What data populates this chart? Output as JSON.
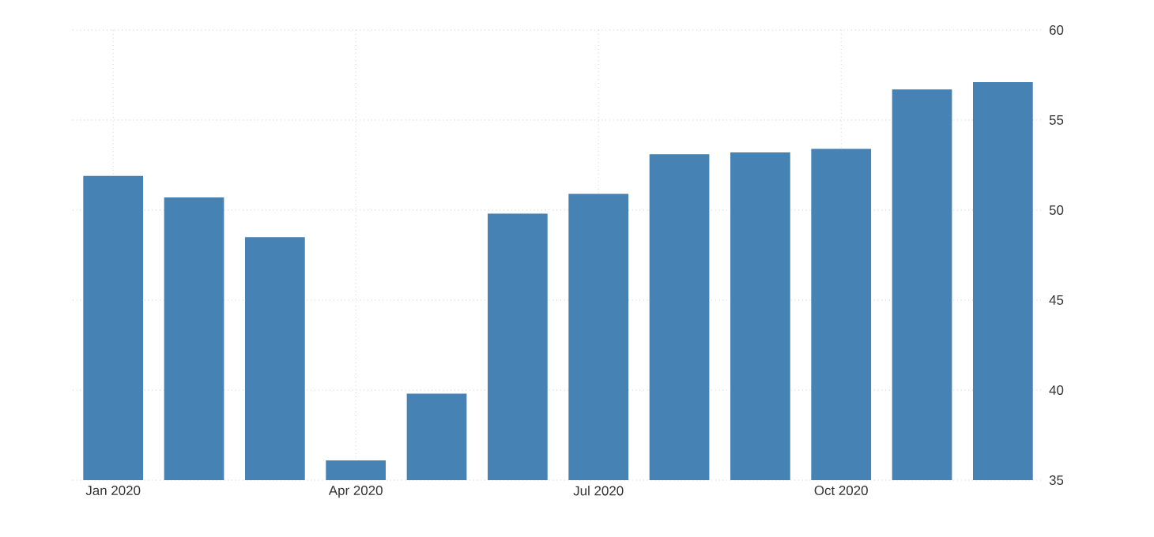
{
  "chart_data": {
    "type": "bar",
    "categories": [
      "Jan 2020",
      null,
      null,
      "Apr 2020",
      null,
      null,
      "Jul 2020",
      null,
      null,
      "Oct 2020",
      null,
      null
    ],
    "values": [
      51.9,
      50.7,
      48.5,
      36.1,
      39.8,
      49.8,
      50.9,
      53.1,
      53.2,
      53.4,
      56.7,
      57.1
    ],
    "color": "#4682b4",
    "ylim": [
      35,
      60
    ],
    "yticks": [
      35,
      40,
      45,
      50,
      55,
      60
    ],
    "grid": true
  }
}
